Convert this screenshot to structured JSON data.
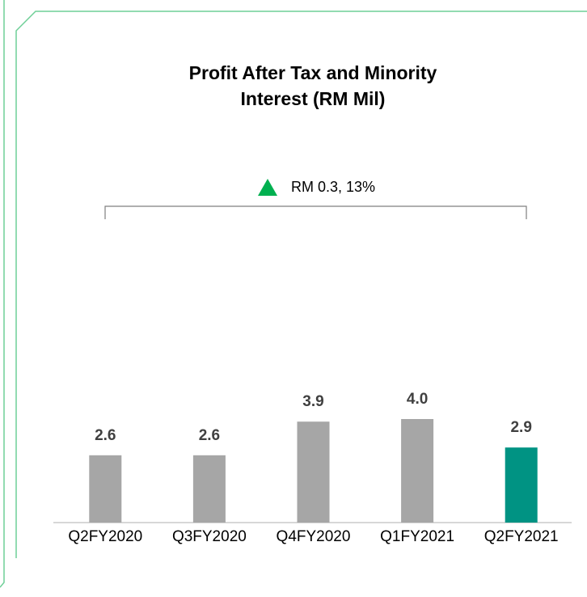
{
  "chart_data": {
    "type": "bar",
    "title": [
      "Profit After Tax and Minority",
      "Interest (RM Mil)"
    ],
    "annotation": "RM 0.3, 13%",
    "categories": [
      "Q2FY2020",
      "Q3FY2020",
      "Q4FY2020",
      "Q1FY2021",
      "Q2FY2021"
    ],
    "values": [
      2.6,
      2.6,
      3.9,
      4.0,
      2.9
    ],
    "value_labels": [
      "2.6",
      "2.6",
      "3.9",
      "4.0",
      "2.9"
    ],
    "colors": [
      "#a6a6a6",
      "#a6a6a6",
      "#a6a6a6",
      "#a6a6a6",
      "#009383"
    ]
  }
}
